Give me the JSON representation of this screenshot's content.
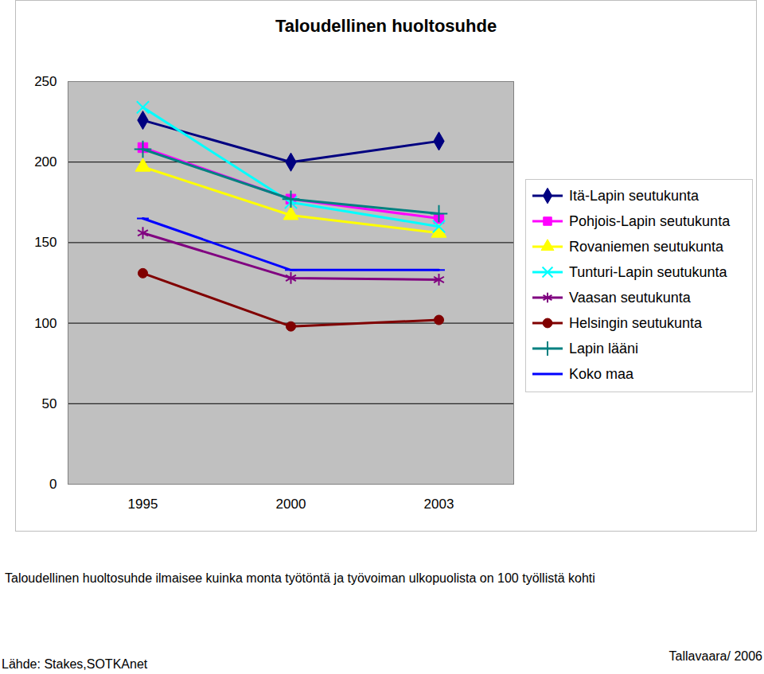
{
  "chart_data": {
    "type": "line",
    "title": "Taloudellinen huoltosuhde",
    "annotations": [
      "Taloudellinen huoltosuhde ilmaisee kuinka monta työtöntä ja työvoiman ulkopuolista on 100 työllistä kohti",
      "Lähde: Stakes,SOTKAnet",
      "Tallavaara/ 2006"
    ],
    "categories": [
      1995,
      2000,
      2003
    ],
    "series": [
      {
        "name": "Itä-Lapin seutukunta",
        "color": "#000080",
        "marker": "diamond",
        "values": [
          226,
          200,
          213
        ]
      },
      {
        "name": "Pohjois-Lapin seutukunta",
        "color": "#ff00ff",
        "marker": "square",
        "values": [
          209,
          177,
          165
        ]
      },
      {
        "name": "Rovaniemen seutukunta",
        "color": "#ffff00",
        "marker": "triangle",
        "values": [
          197,
          167,
          156
        ]
      },
      {
        "name": "Tunturi-Lapin seutukunta",
        "color": "#00ffff",
        "marker": "times",
        "values": [
          234,
          175,
          160
        ]
      },
      {
        "name": "Vaasan seutukunta",
        "color": "#800080",
        "marker": "asterisk",
        "values": [
          156,
          128,
          127
        ]
      },
      {
        "name": "Helsingin seutukunta",
        "color": "#800000",
        "marker": "circle",
        "values": [
          131,
          98,
          102
        ]
      },
      {
        "name": "Lapin lääni",
        "color": "#008080",
        "marker": "plus",
        "values": [
          208,
          177,
          168
        ]
      },
      {
        "name": "Koko maa",
        "color": "#0000ff",
        "marker": "dash",
        "values": [
          165,
          133,
          133
        ]
      }
    ],
    "ylim": [
      0,
      250
    ],
    "yticks": [
      0,
      50,
      100,
      150,
      200,
      250
    ],
    "grid": true,
    "legend": "right"
  }
}
